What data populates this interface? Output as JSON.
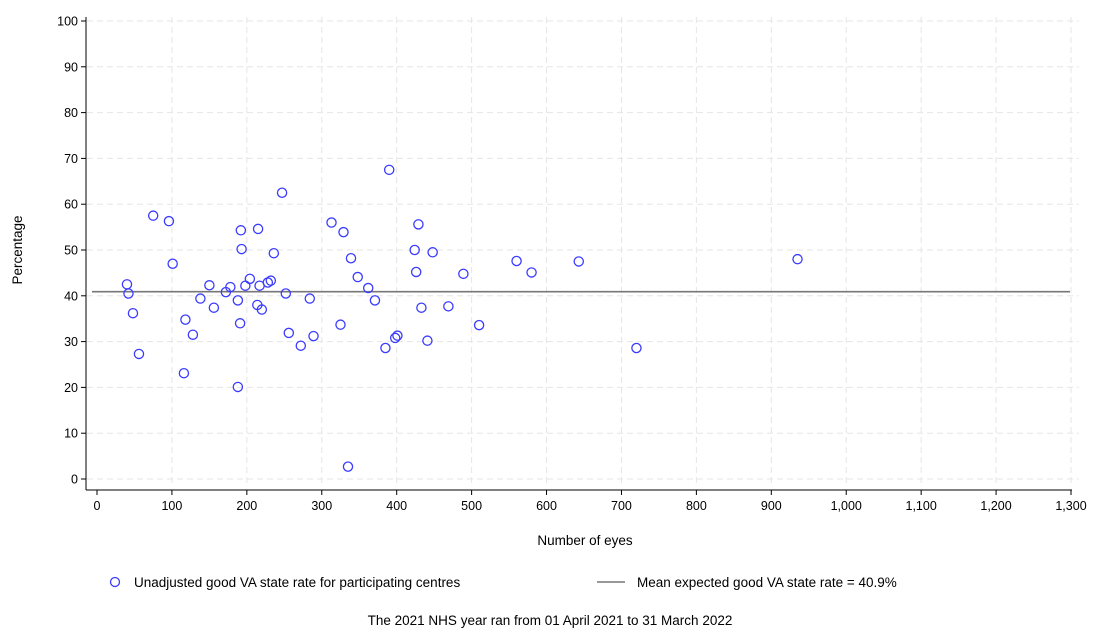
{
  "chart_data": {
    "type": "scatter",
    "xlabel": "Number of eyes",
    "ylabel": "Percentage",
    "xlim": [
      0,
      1300
    ],
    "ylim": [
      0,
      100
    ],
    "x_ticks": [
      0,
      100,
      200,
      300,
      400,
      500,
      600,
      700,
      800,
      900,
      1000,
      1100,
      1200,
      1300
    ],
    "x_tick_labels": [
      "0",
      "100",
      "200",
      "300",
      "400",
      "500",
      "600",
      "700",
      "800",
      "900",
      "1,000",
      "1,100",
      "1,200",
      "1,300"
    ],
    "y_ticks": [
      0,
      10,
      20,
      30,
      40,
      50,
      60,
      70,
      80,
      90,
      100
    ],
    "y_tick_labels": [
      "0",
      "10",
      "20",
      "30",
      "40",
      "50",
      "60",
      "70",
      "80",
      "90",
      "100"
    ],
    "grid": true,
    "legend_position": "bottom",
    "marker_color": "#3b3bff",
    "line_color": "#777777",
    "series": [
      {
        "name": "Unadjusted good VA state rate for participating centres",
        "kind": "scatter",
        "points": [
          [
            40,
            42.5
          ],
          [
            42,
            40.5
          ],
          [
            48,
            36.2
          ],
          [
            56,
            27.3
          ],
          [
            75,
            57.5
          ],
          [
            96,
            56.3
          ],
          [
            101,
            47.0
          ],
          [
            116,
            23.1
          ],
          [
            118,
            34.8
          ],
          [
            128,
            31.5
          ],
          [
            138,
            39.4
          ],
          [
            150,
            42.3
          ],
          [
            156,
            37.4
          ],
          [
            172,
            40.8
          ],
          [
            178,
            41.9
          ],
          [
            188,
            39.0
          ],
          [
            188,
            20.1
          ],
          [
            191,
            34.0
          ],
          [
            192,
            54.3
          ],
          [
            193,
            50.2
          ],
          [
            198,
            42.2
          ],
          [
            204,
            43.7
          ],
          [
            214,
            38.0
          ],
          [
            215,
            54.6
          ],
          [
            217,
            42.2
          ],
          [
            220,
            37.0
          ],
          [
            228,
            42.9
          ],
          [
            232,
            43.3
          ],
          [
            236,
            49.3
          ],
          [
            247,
            62.5
          ],
          [
            252,
            40.5
          ],
          [
            256,
            31.9
          ],
          [
            272,
            29.1
          ],
          [
            284,
            39.4
          ],
          [
            289,
            31.2
          ],
          [
            313,
            56.0
          ],
          [
            325,
            33.7
          ],
          [
            329,
            53.9
          ],
          [
            335,
            2.7
          ],
          [
            339,
            48.2
          ],
          [
            348,
            44.1
          ],
          [
            362,
            41.7
          ],
          [
            371,
            39.0
          ],
          [
            385,
            28.6
          ],
          [
            390,
            67.5
          ],
          [
            398,
            30.8
          ],
          [
            401,
            31.3
          ],
          [
            424,
            50.0
          ],
          [
            426,
            45.2
          ],
          [
            429,
            55.6
          ],
          [
            433,
            37.4
          ],
          [
            441,
            30.2
          ],
          [
            448,
            49.5
          ],
          [
            469,
            37.7
          ],
          [
            489,
            44.8
          ],
          [
            510,
            33.6
          ],
          [
            560,
            47.6
          ],
          [
            580,
            45.1
          ],
          [
            643,
            47.5
          ],
          [
            720,
            28.6
          ],
          [
            935,
            48.0
          ]
        ]
      },
      {
        "name": "Mean expected good VA state rate = 40.9%",
        "kind": "hline",
        "value": 40.9
      }
    ],
    "annotations": [
      "The 2021 NHS year ran from 01 April 2021 to 31 March 2022"
    ]
  }
}
